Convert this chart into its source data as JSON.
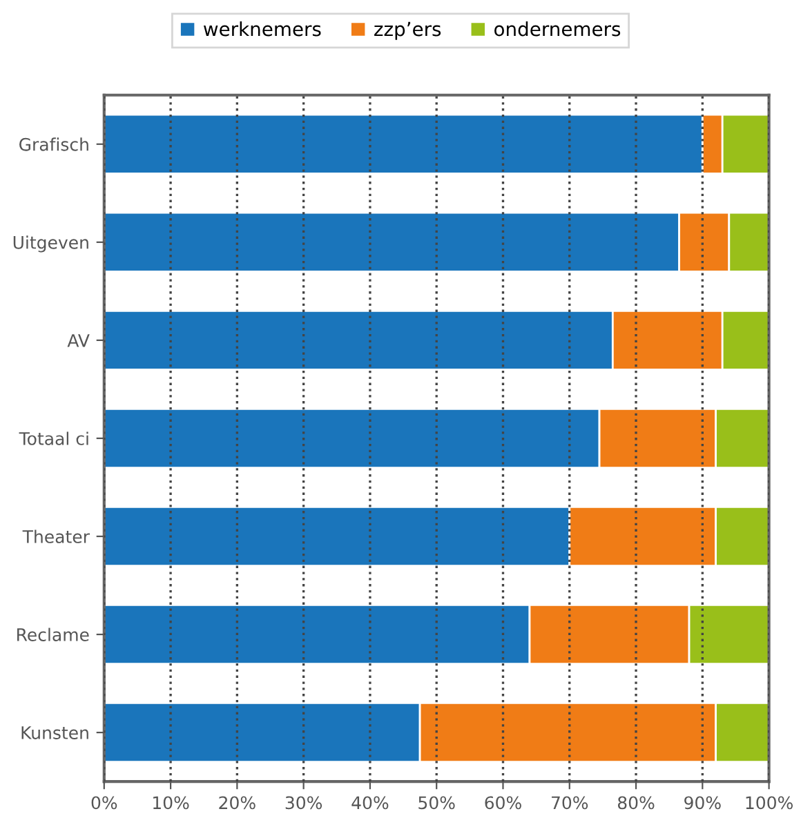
{
  "chart_data": {
    "type": "bar",
    "orientation": "horizontal",
    "stacked": true,
    "categories": [
      "Grafisch",
      "Uitgeven",
      "AV",
      "Totaal ci",
      "Theater",
      "Reclame",
      "Kunsten"
    ],
    "series": [
      {
        "name": "werknemers",
        "color": "#1a75bb",
        "values": [
          90,
          86.5,
          76.5,
          74.5,
          70,
          64,
          47.5
        ]
      },
      {
        "name": "zzp’ers",
        "color": "#f07c16",
        "values": [
          3,
          7.5,
          16.5,
          17.5,
          22,
          24,
          44.5
        ]
      },
      {
        "name": "ondernemers",
        "color": "#99bf1a",
        "values": [
          7,
          6,
          7,
          8,
          8,
          12,
          8
        ]
      }
    ],
    "xlim": [
      0,
      100
    ],
    "xticks": [
      {
        "value": 0,
        "label": "0%"
      },
      {
        "value": 10,
        "label": "10%"
      },
      {
        "value": 20,
        "label": "20%"
      },
      {
        "value": 30,
        "label": "30%"
      },
      {
        "value": 40,
        "label": "40%"
      },
      {
        "value": 50,
        "label": "50%"
      },
      {
        "value": 60,
        "label": "60%"
      },
      {
        "value": 70,
        "label": "70%"
      },
      {
        "value": 80,
        "label": "80%"
      },
      {
        "value": 90,
        "label": "90%"
      },
      {
        "value": 100,
        "label": "100%"
      }
    ],
    "grid": "x",
    "legend": "top"
  }
}
